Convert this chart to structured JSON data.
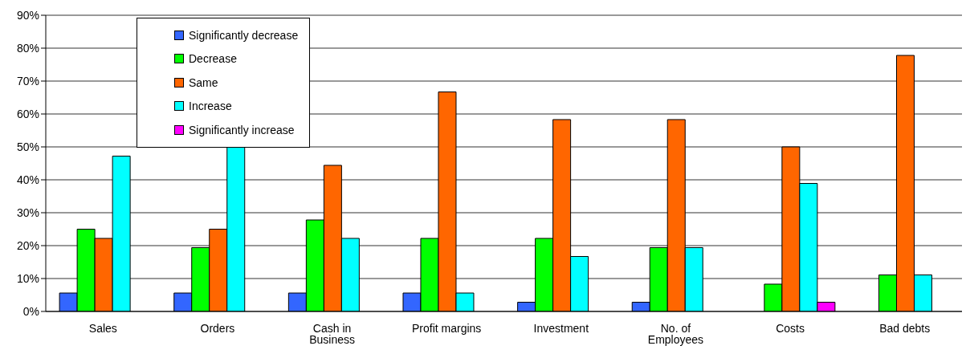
{
  "chart_data": {
    "type": "bar",
    "categories": [
      "Sales",
      "Orders",
      "Cash in Business",
      "Profit margins",
      "Investment",
      "No. of Employees",
      "Costs",
      "Bad debts"
    ],
    "series": [
      {
        "name": "Significantly decrease",
        "color": "#3366ff",
        "values": [
          5.6,
          5.6,
          5.6,
          5.6,
          2.8,
          2.8,
          0,
          0
        ]
      },
      {
        "name": "Decrease",
        "color": "#00ff00",
        "values": [
          25,
          19.4,
          27.8,
          22.2,
          22.2,
          19.4,
          8.3,
          11.1
        ]
      },
      {
        "name": "Same",
        "color": "#ff6600",
        "values": [
          22.2,
          25,
          44.4,
          66.7,
          58.3,
          58.3,
          50,
          77.8
        ]
      },
      {
        "name": "Increase",
        "color": "#00ffff",
        "values": [
          47.2,
          50,
          22.2,
          5.6,
          16.7,
          19.4,
          38.9,
          11.1
        ]
      },
      {
        "name": "Significantly increase",
        "color": "#ff00ff",
        "values": [
          0,
          0,
          0,
          0,
          0,
          0,
          2.8,
          0
        ]
      }
    ],
    "ylim": [
      0,
      90
    ],
    "yticks": [
      {
        "value": 0,
        "label": "0%"
      },
      {
        "value": 10,
        "label": "10%"
      },
      {
        "value": 20,
        "label": "20%"
      },
      {
        "value": 30,
        "label": "30%"
      },
      {
        "value": 40,
        "label": "40%"
      },
      {
        "value": 50,
        "label": "50%"
      },
      {
        "value": 60,
        "label": "60%"
      },
      {
        "value": 70,
        "label": "70%"
      },
      {
        "value": 80,
        "label": "80%"
      },
      {
        "value": 90,
        "label": "90%"
      }
    ],
    "grid": "y",
    "legend": "top left"
  }
}
